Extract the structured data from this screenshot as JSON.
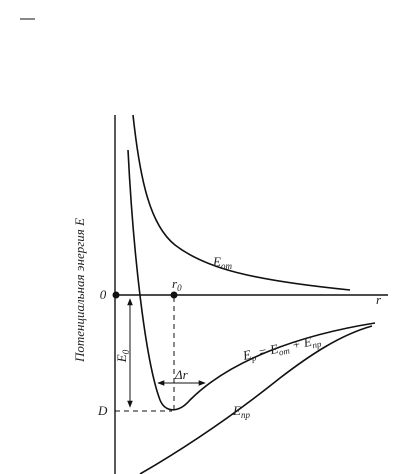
{
  "axis_label": "Потенциальная энергия E",
  "origin_label": "0",
  "r_axis_label": "r",
  "r0_label": {
    "main": "r",
    "sub": "0"
  },
  "repulsion_label": {
    "main": "E",
    "sub": "от"
  },
  "attraction_label": {
    "main": "E",
    "sub": "пр"
  },
  "result_label": {
    "main": "E",
    "sub": "p",
    "rest": " = E",
    "sub2": "от",
    "rest2": " + E",
    "sub3": "пр"
  },
  "e0_label": {
    "main": "E",
    "sub": "0"
  },
  "delta_r_label": "Δr",
  "depth_label": "D"
}
